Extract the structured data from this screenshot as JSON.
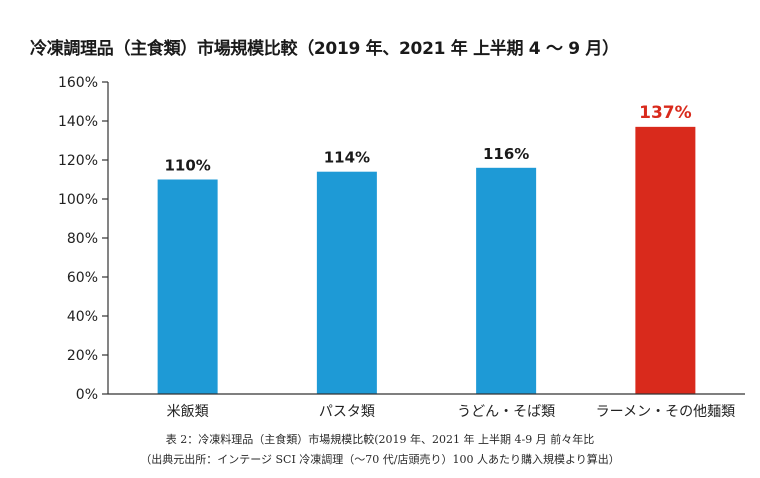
{
  "chart_data": {
    "type": "bar",
    "title": "冷凍調理品（主食類）市場規模比較（2019 年、2021 年 上半期 4 〜 9 月）",
    "categories": [
      "米飯類",
      "パスタ類",
      "うどん・そば類",
      "ラーメン・その他麺類"
    ],
    "values": [
      110,
      114,
      116,
      137
    ],
    "data_labels": [
      "110%",
      "114%",
      "116%",
      "137%"
    ],
    "ylim": [
      0,
      160
    ],
    "yticks": [
      0,
      20,
      40,
      60,
      80,
      100,
      120,
      140,
      160
    ],
    "ytick_labels": [
      "0%",
      "20%",
      "40%",
      "60%",
      "80%",
      "100%",
      "120%",
      "140%",
      "160%"
    ],
    "xlabel": "",
    "ylabel": "",
    "grid": false,
    "colors": {
      "default_bar": "#1e9ad6",
      "highlight_bar": "#d92a1c",
      "highlight_label": "#d92a1c",
      "default_label": "#1a1a1a"
    },
    "highlight_index": 3
  },
  "caption": {
    "line1": "表 2：冷凍料理品（主食類）市場規模比較(2019 年、2021 年 上半期 4-9 月 前々年比",
    "line2": "（出典元出所：インテージ SCI 冷凍調理（〜70 代/店頭売り）100 人あたり購入規模より算出）"
  }
}
